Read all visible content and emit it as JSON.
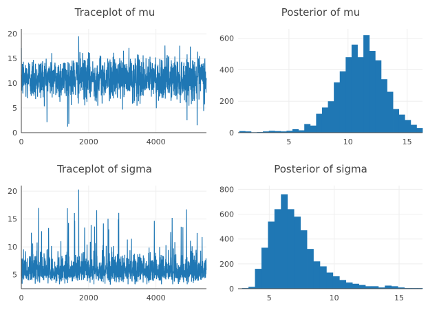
{
  "colors": {
    "series": "#1f77b4",
    "grid": "#eeeeee",
    "text": "#444444"
  },
  "chart_data": [
    {
      "id": "trace_mu",
      "type": "line",
      "title": "Traceplot of mu",
      "xlabel": "",
      "ylabel": "",
      "xlim": [
        0,
        5500
      ],
      "ylim": [
        0,
        21
      ],
      "xticks": [
        0,
        2000,
        4000
      ],
      "yticks": [
        0,
        5,
        10,
        15,
        20
      ],
      "grid": true,
      "series": [
        {
          "n_samples": 5500,
          "mean": 11,
          "sd": 2.2,
          "min": 1.2,
          "max": 19.5
        }
      ]
    },
    {
      "id": "hist_mu",
      "type": "bar",
      "title": "Posterior of mu",
      "xlabel": "",
      "ylabel": "",
      "xlim": [
        0.7,
        16.3
      ],
      "ylim": [
        0,
        660
      ],
      "xticks": [
        5,
        10,
        15
      ],
      "yticks": [
        0,
        200,
        400,
        600
      ],
      "grid": true,
      "bin_start": 0.8,
      "bin_width": 0.5,
      "values": [
        10,
        8,
        3,
        4,
        8,
        12,
        10,
        8,
        12,
        22,
        15,
        55,
        45,
        120,
        160,
        200,
        320,
        390,
        480,
        560,
        480,
        620,
        520,
        460,
        340,
        260,
        150,
        115,
        80,
        50,
        30
      ]
    },
    {
      "id": "trace_sigma",
      "type": "line",
      "title": "Traceplot of sigma",
      "xlabel": "",
      "ylabel": "",
      "xlim": [
        0,
        5500
      ],
      "ylim": [
        2.5,
        21
      ],
      "xticks": [
        0,
        2000,
        4000
      ],
      "yticks": [
        5,
        10,
        15,
        20
      ],
      "grid": true,
      "series": [
        {
          "n_samples": 5500,
          "mean": 6.8,
          "sd": 1.6,
          "min": 3.3,
          "max": 20.3
        }
      ]
    },
    {
      "id": "hist_sigma",
      "type": "bar",
      "title": "Posterior of sigma",
      "xlabel": "",
      "ylabel": "",
      "xlim": [
        2.6,
        16.8
      ],
      "ylim": [
        0,
        830
      ],
      "xticks": [
        5,
        10,
        15
      ],
      "yticks": [
        0,
        200,
        400,
        600,
        800
      ],
      "grid": true,
      "bin_start": 2.9,
      "bin_width": 0.5,
      "values": [
        5,
        15,
        160,
        330,
        540,
        640,
        760,
        640,
        580,
        470,
        320,
        220,
        180,
        130,
        100,
        70,
        50,
        40,
        30,
        20,
        20,
        10,
        25,
        20,
        10,
        5,
        5,
        5
      ]
    }
  ]
}
